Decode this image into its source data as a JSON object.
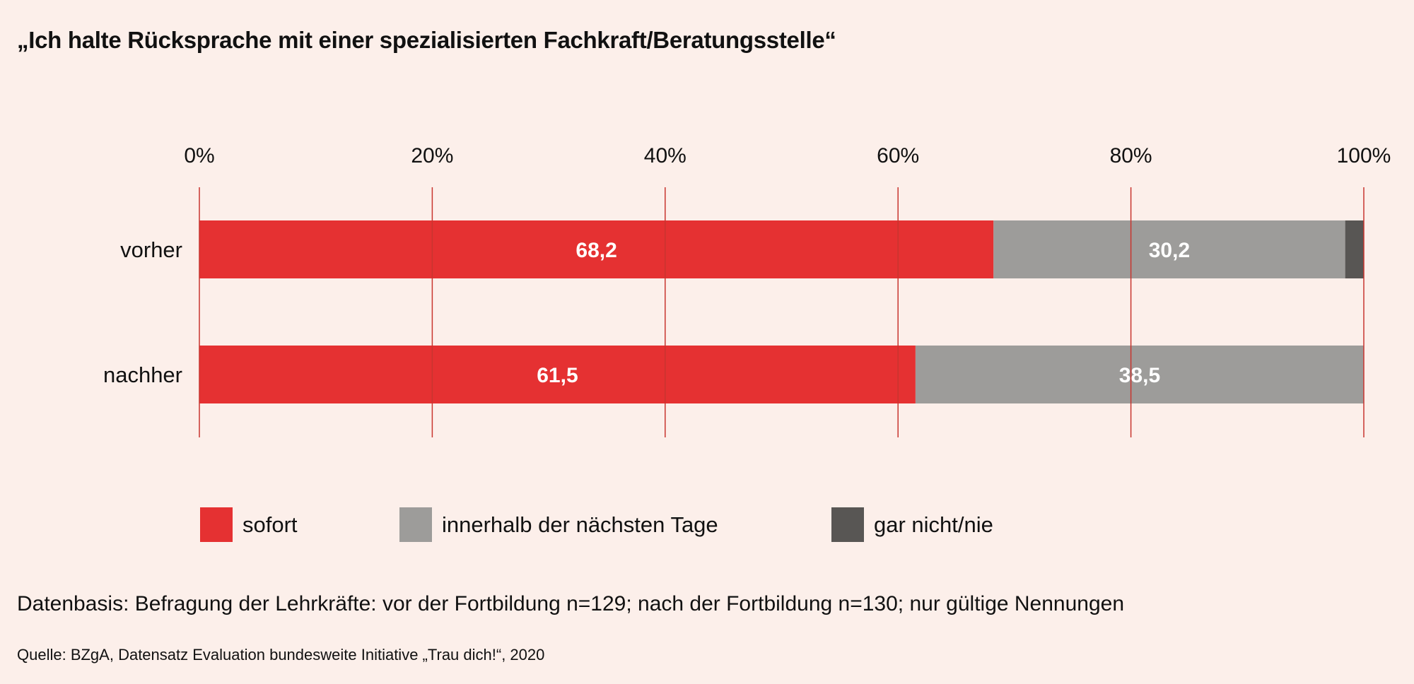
{
  "chart_data": {
    "type": "bar",
    "orientation": "horizontal",
    "stacked": true,
    "title": "„Ich halte Rücksprache mit einer spezialisierten Fachkraft/Beratungsstelle“",
    "categories": [
      "vorher",
      "nachher"
    ],
    "series": [
      {
        "name": "sofort",
        "values": [
          68.2,
          61.5
        ],
        "labels": [
          "68,2",
          "61,5"
        ],
        "color": "#e53132"
      },
      {
        "name": "innerhalb der nächsten Tage",
        "values": [
          30.2,
          38.5
        ],
        "labels": [
          "30,2",
          "38,5"
        ],
        "color": "#9d9c9a"
      },
      {
        "name": "gar nicht/nie",
        "values": [
          1.6,
          0
        ],
        "labels": [
          "",
          ""
        ],
        "color": "#585654"
      }
    ],
    "xlim": [
      0,
      100
    ],
    "xticks": [
      0,
      20,
      40,
      60,
      80,
      100
    ],
    "xtick_labels": [
      "0%",
      "20%",
      "40%",
      "60%",
      "80%",
      "100%"
    ],
    "xaxis_position": "top",
    "grid": true,
    "grid_color": "#c8352f",
    "legend_position": "bottom",
    "note": "Datenbasis: Befragung der Lehrkräfte: vor der Fortbildung n=129; nach der Fortbildung n=130; nur gültige Nennungen",
    "source": "Quelle: BZgA, Datensatz Evaluation bundesweite Initiative „Trau dich!“, 2020"
  }
}
